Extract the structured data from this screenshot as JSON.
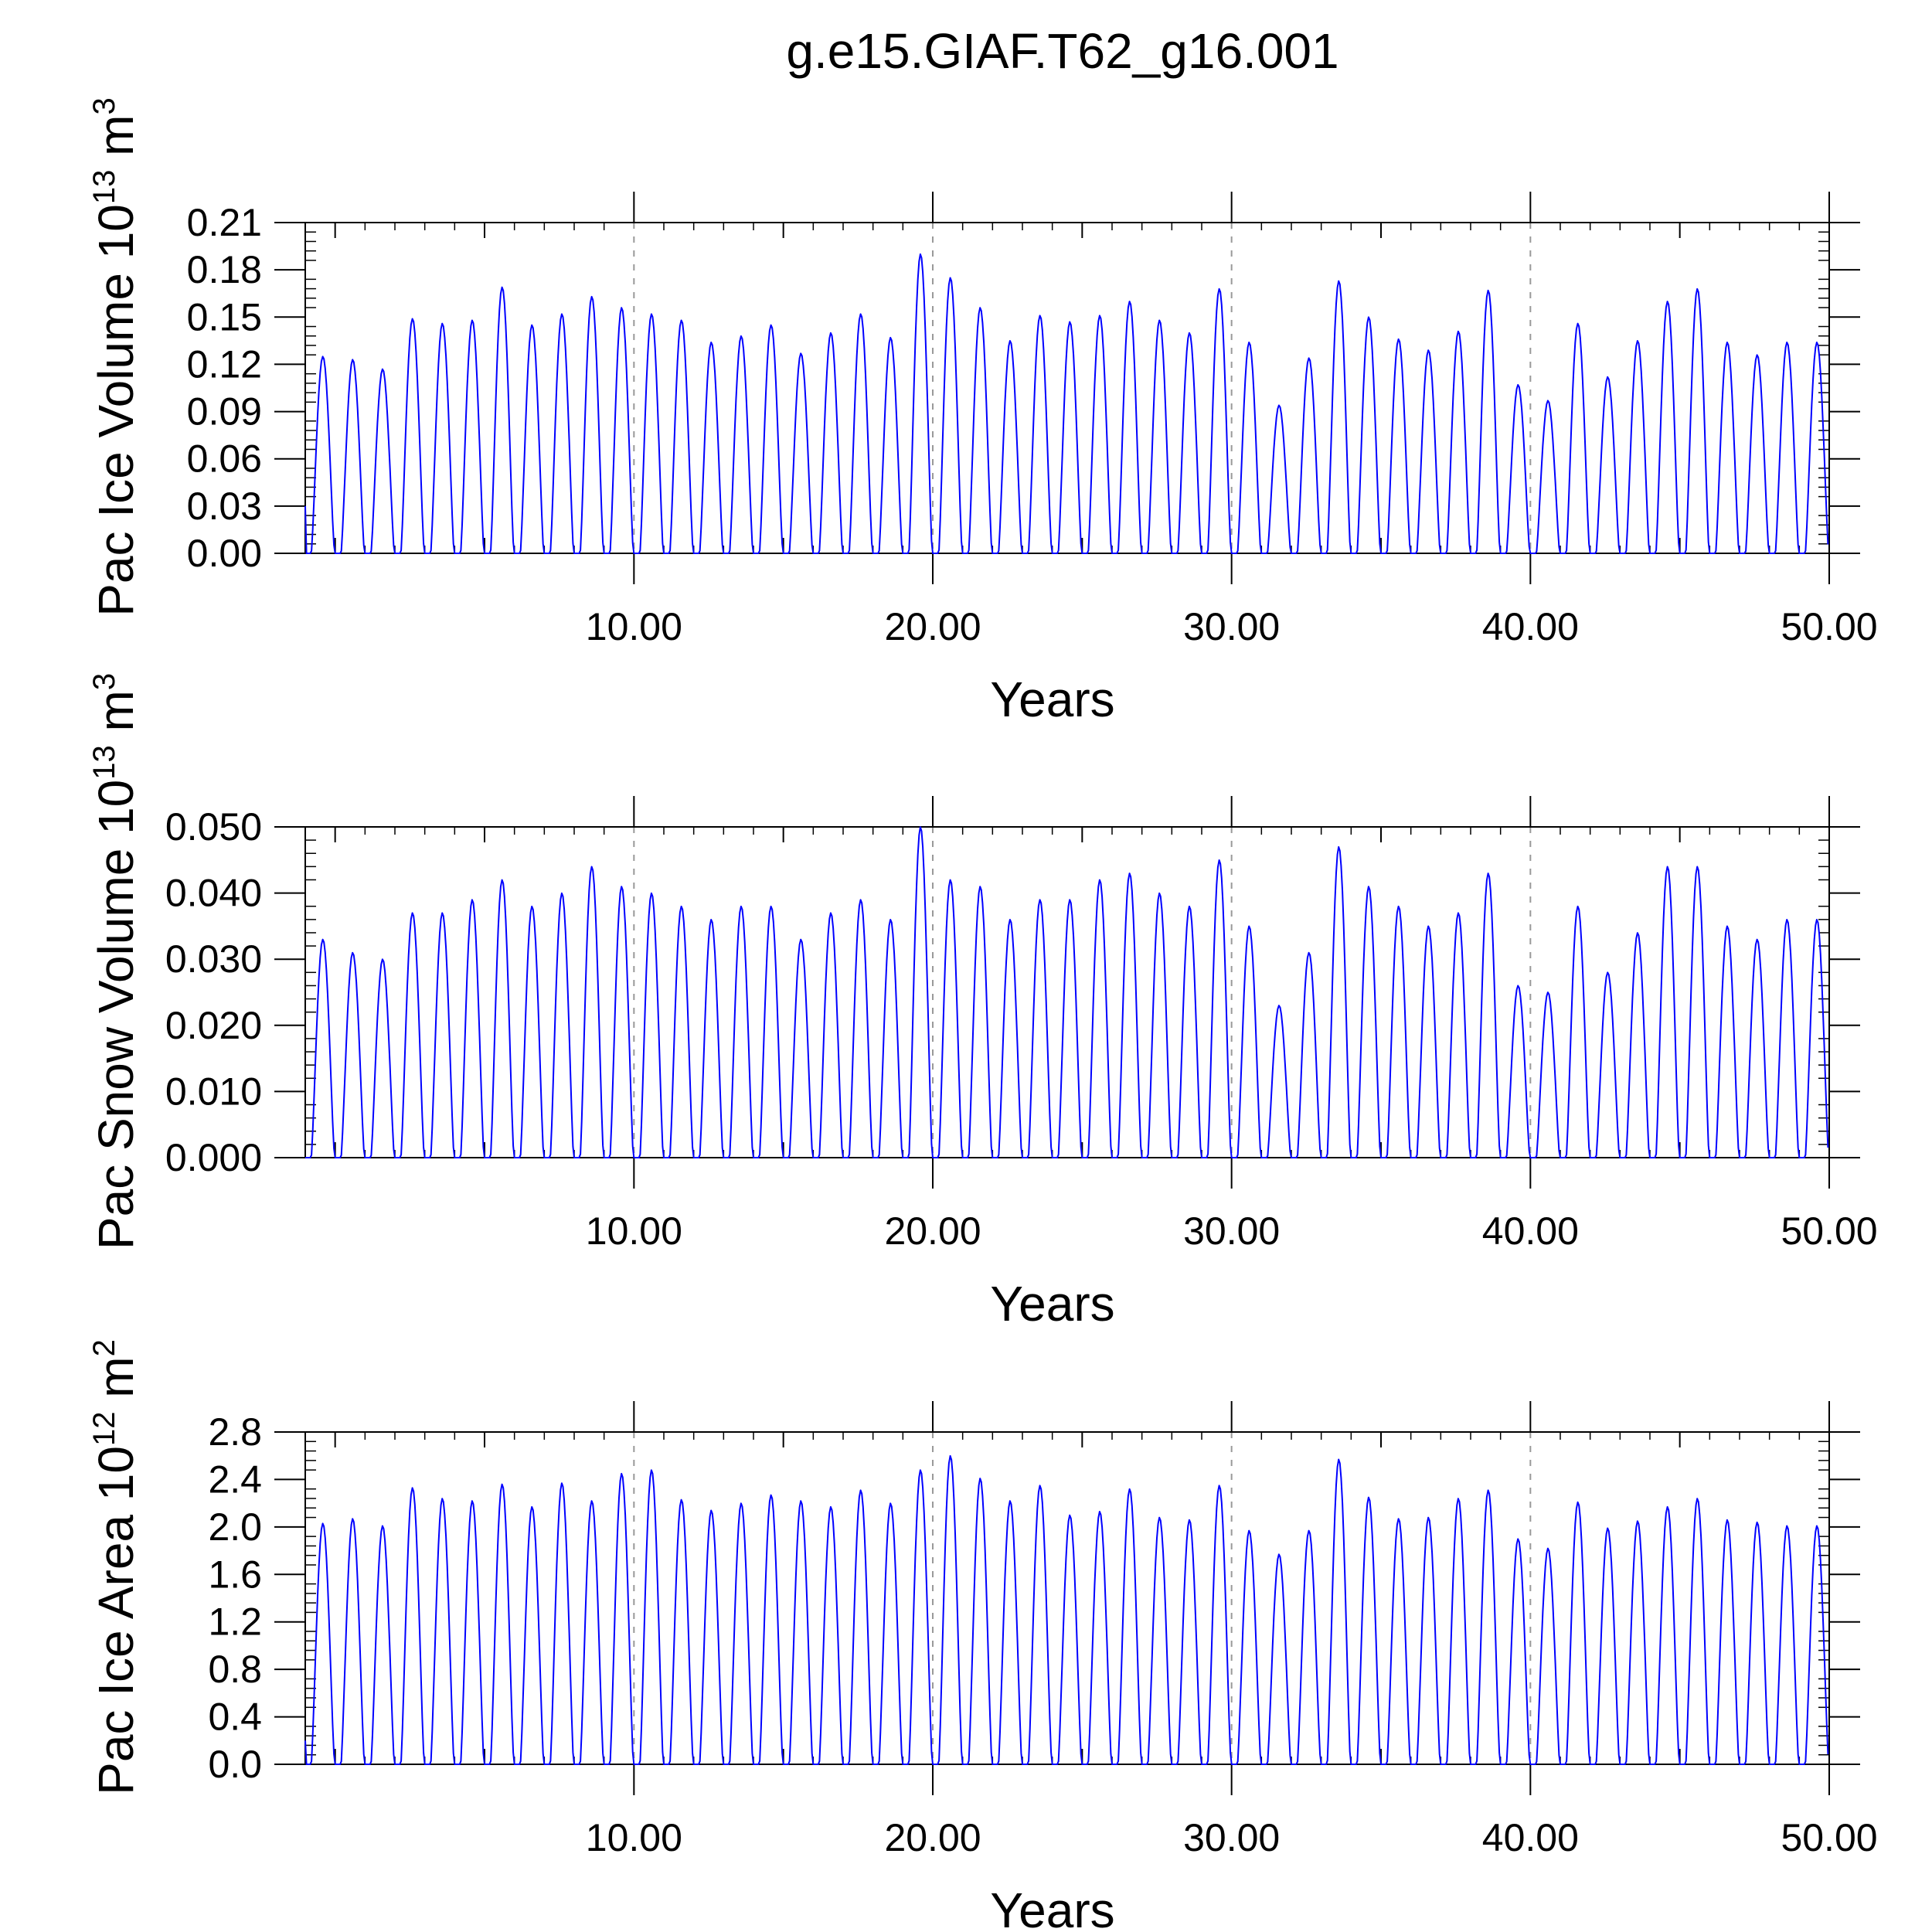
{
  "title": "g.e15.GIAF.T62_g16.001",
  "colors": {
    "series": "#0000ff",
    "axis": "#000000",
    "grid": "#999999"
  },
  "chart_data": [
    {
      "type": "line",
      "title": "",
      "xlabel": "Years",
      "ylabel": "Pac Ice Volume 10",
      "ylabel_exponent": "13",
      "ylabel_unit": " m",
      "ylabel_unit_exponent": "3",
      "xlim": [
        0,
        50
      ],
      "ylim": [
        0,
        0.21
      ],
      "xticks": [
        "10.00",
        "20.00",
        "30.00",
        "40.00",
        "50.00"
      ],
      "yticks": [
        "0.00",
        "0.03",
        "0.06",
        "0.09",
        "0.12",
        "0.15",
        "0.18",
        "0.21"
      ],
      "series": [
        {
          "name": "Pac Ice Volume",
          "start_value": 0.03,
          "annual_peaks": [
            0.125,
            0.123,
            0.117,
            0.149,
            0.146,
            0.148,
            0.169,
            0.145,
            0.152,
            0.163,
            0.156,
            0.152,
            0.148,
            0.134,
            0.138,
            0.145,
            0.127,
            0.14,
            0.152,
            0.137,
            0.19,
            0.175,
            0.156,
            0.135,
            0.151,
            0.147,
            0.151,
            0.16,
            0.148,
            0.14,
            0.168,
            0.134,
            0.094,
            0.124,
            0.173,
            0.15,
            0.136,
            0.129,
            0.141,
            0.167,
            0.107,
            0.097,
            0.146,
            0.112,
            0.135,
            0.16,
            0.168,
            0.134,
            0.126,
            0.134
          ]
        }
      ]
    },
    {
      "type": "line",
      "title": "",
      "xlabel": "Years",
      "ylabel": "Pac Snow Volume 10",
      "ylabel_exponent": "13",
      "ylabel_unit": " m",
      "ylabel_unit_exponent": "3",
      "xlim": [
        0,
        50
      ],
      "ylim": [
        0,
        0.05
      ],
      "xticks": [
        "10.00",
        "20.00",
        "30.00",
        "40.00",
        "50.00"
      ],
      "yticks": [
        "0.000",
        "0.010",
        "0.020",
        "0.030",
        "0.040",
        "0.050"
      ],
      "series": [
        {
          "name": "Pac Snow Volume",
          "start_value": 0.0,
          "annual_peaks": [
            0.033,
            0.031,
            0.03,
            0.037,
            0.037,
            0.039,
            0.042,
            0.038,
            0.04,
            0.044,
            0.041,
            0.04,
            0.038,
            0.036,
            0.038,
            0.038,
            0.033,
            0.037,
            0.039,
            0.036,
            0.05,
            0.042,
            0.041,
            0.036,
            0.039,
            0.039,
            0.042,
            0.043,
            0.04,
            0.038,
            0.045,
            0.035,
            0.023,
            0.031,
            0.047,
            0.041,
            0.038,
            0.035,
            0.037,
            0.043,
            0.026,
            0.025,
            0.038,
            0.028,
            0.034,
            0.044,
            0.044,
            0.035,
            0.033,
            0.036
          ]
        }
      ]
    },
    {
      "type": "line",
      "title": "",
      "xlabel": "Years",
      "ylabel": "Pac Ice Area 10",
      "ylabel_exponent": "12",
      "ylabel_unit": " m",
      "ylabel_unit_exponent": "2",
      "xlim": [
        0,
        50
      ],
      "ylim": [
        0,
        2.8
      ],
      "xticks": [
        "10.00",
        "20.00",
        "30.00",
        "40.00",
        "50.00"
      ],
      "yticks": [
        "0.0",
        "0.4",
        "0.8",
        "1.2",
        "1.6",
        "2.0",
        "2.4",
        "2.8"
      ],
      "series": [
        {
          "name": "Pac Ice Area",
          "start_value": 0.2,
          "annual_peaks": [
            2.03,
            2.07,
            2.01,
            2.33,
            2.24,
            2.22,
            2.36,
            2.17,
            2.37,
            2.22,
            2.45,
            2.48,
            2.23,
            2.14,
            2.2,
            2.27,
            2.22,
            2.17,
            2.31,
            2.2,
            2.48,
            2.6,
            2.41,
            2.22,
            2.35,
            2.1,
            2.13,
            2.32,
            2.08,
            2.06,
            2.35,
            1.97,
            1.77,
            1.97,
            2.57,
            2.25,
            2.07,
            2.08,
            2.24,
            2.31,
            1.9,
            1.82,
            2.21,
            1.99,
            2.05,
            2.17,
            2.24,
            2.06,
            2.04,
            2.01
          ]
        }
      ]
    }
  ]
}
